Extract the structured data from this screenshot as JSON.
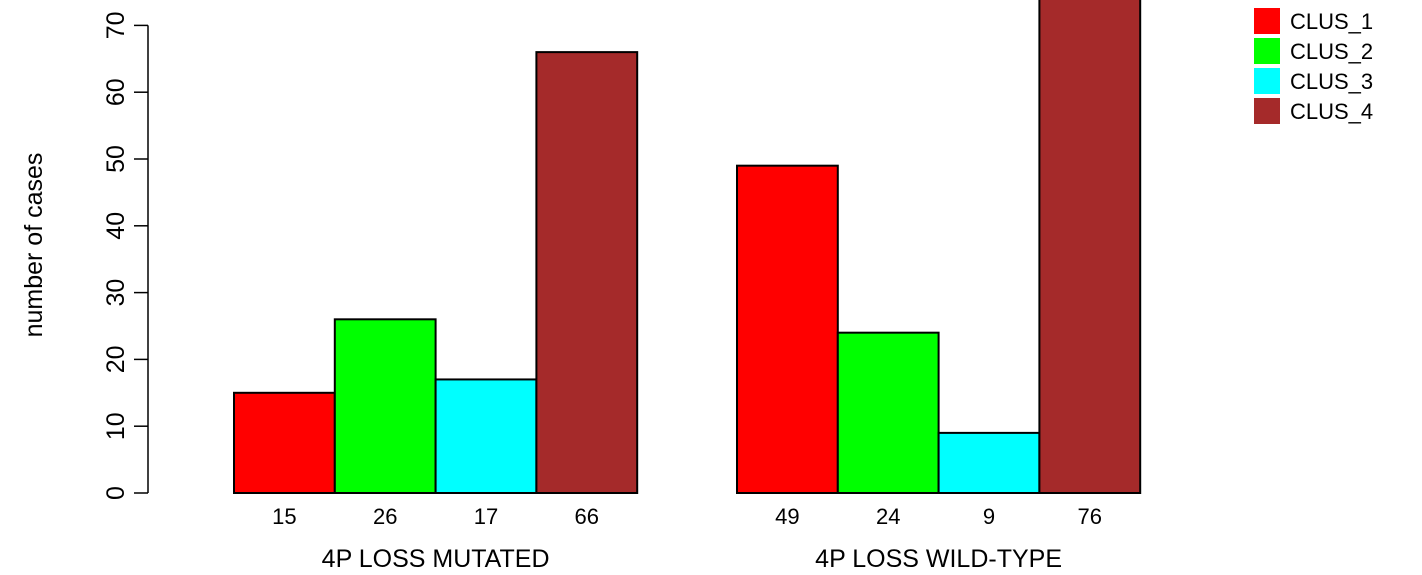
{
  "chart_data": {
    "type": "bar",
    "ylabel": "number of cases",
    "ylim": [
      0,
      75
    ],
    "yticks": [
      0,
      10,
      20,
      30,
      40,
      50,
      60,
      70
    ],
    "groups": [
      {
        "label": "4P LOSS MUTATED",
        "values": [
          15,
          26,
          17,
          66
        ]
      },
      {
        "label": "4P LOSS WILD-TYPE",
        "values": [
          49,
          24,
          9,
          76
        ]
      }
    ],
    "series": [
      {
        "name": "CLUS_1",
        "color": "#ff0000"
      },
      {
        "name": "CLUS_2",
        "color": "#00ff00"
      },
      {
        "name": "CLUS_3",
        "color": "#00ffff"
      },
      {
        "name": "CLUS_4",
        "color": "#a52a2a"
      }
    ],
    "legend": "top-right",
    "grid": false
  }
}
